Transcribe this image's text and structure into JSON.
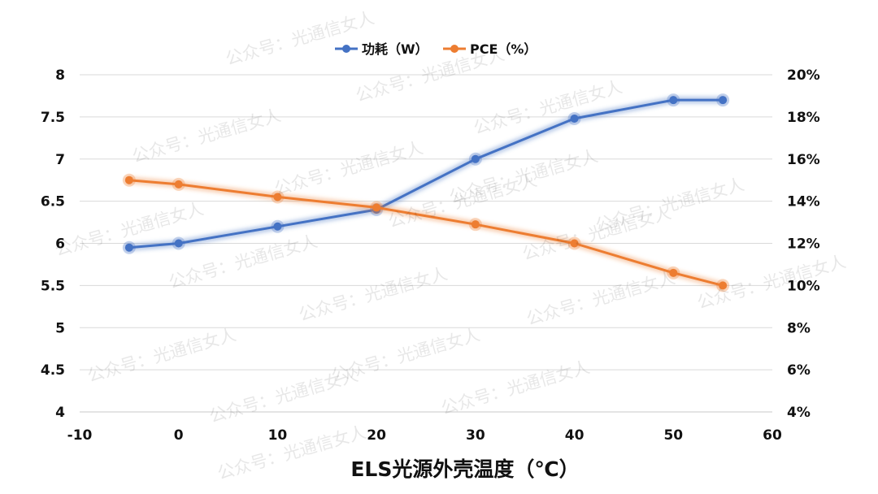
{
  "chart_data": {
    "type": "line",
    "xlabel": "ELS光源外壳温度（℃）",
    "xlim": [
      -10,
      60
    ],
    "xticks": [
      -10,
      0,
      10,
      20,
      30,
      40,
      50,
      60
    ],
    "ylim_left": [
      4,
      8
    ],
    "yticks_left": [
      "4",
      "4.5",
      "5",
      "5.5",
      "6",
      "6.5",
      "7",
      "7.5",
      "8"
    ],
    "ylim_right": [
      4,
      20
    ],
    "yticks_right": [
      "4%",
      "6%",
      "8%",
      "10%",
      "12%",
      "14%",
      "16%",
      "18%",
      "20%"
    ],
    "grid": true,
    "legend_position": "top-center",
    "series": [
      {
        "name": "功耗（W）",
        "axis": "left",
        "color": "#4472C4",
        "x": [
          -5,
          0,
          10,
          20,
          30,
          40,
          50,
          55
        ],
        "values": [
          5.95,
          6.0,
          6.2,
          6.4,
          7.0,
          7.48,
          7.7,
          7.7
        ]
      },
      {
        "name": "PCE（%）",
        "axis": "right",
        "color": "#ED7D31",
        "x": [
          -5,
          0,
          10,
          20,
          30,
          40,
          50,
          55
        ],
        "values": [
          15.0,
          14.8,
          14.2,
          13.7,
          12.9,
          12.0,
          10.6,
          10.0
        ]
      }
    ],
    "watermark": "公众号：光通信女人"
  }
}
